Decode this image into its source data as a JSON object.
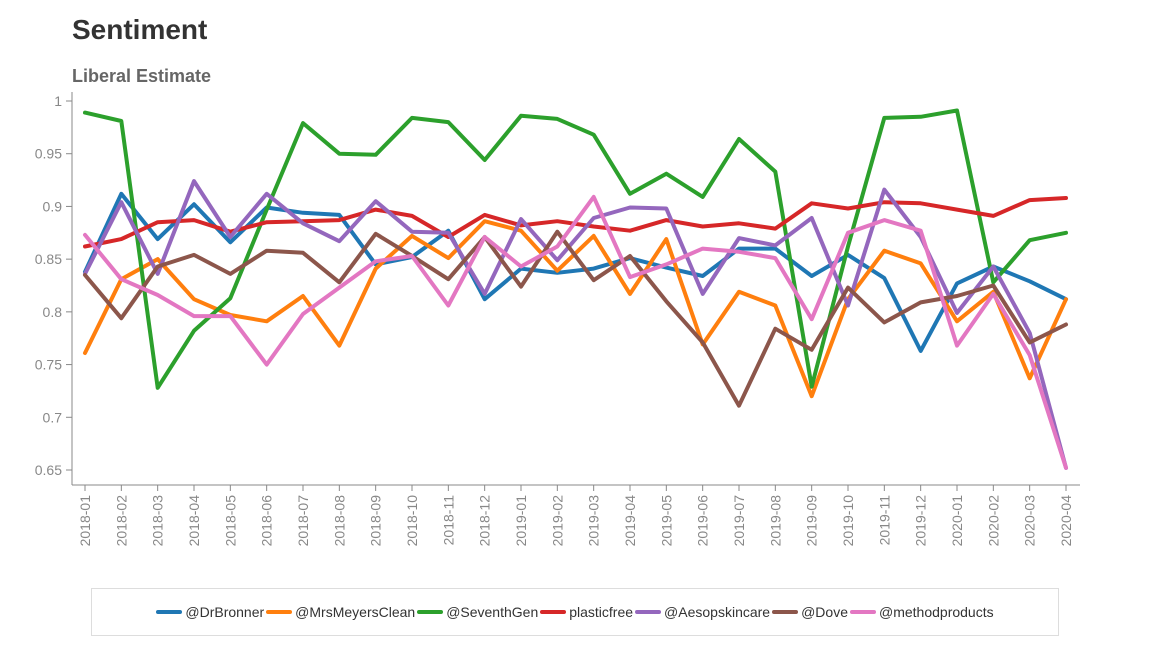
{
  "title": "Sentiment",
  "subtitle": "Liberal Estimate",
  "chart_data": {
    "type": "line",
    "x": [
      "2018-01",
      "2018-02",
      "2018-03",
      "2018-04",
      "2018-05",
      "2018-06",
      "2018-07",
      "2018-08",
      "2018-09",
      "2018-10",
      "2018-11",
      "2018-12",
      "2019-01",
      "2019-02",
      "2019-03",
      "2019-04",
      "2019-05",
      "2019-06",
      "2019-07",
      "2019-08",
      "2019-09",
      "2019-10",
      "2019-11",
      "2019-12",
      "2020-01",
      "2020-02",
      "2020-03",
      "2020-04"
    ],
    "ylim": [
      0.64,
      1.0
    ],
    "yticks": [
      0.65,
      0.7,
      0.75,
      0.8,
      0.85,
      0.9,
      0.95,
      1
    ],
    "ytick_labels": [
      "0.65",
      "0.7",
      "0.75",
      "0.8",
      "0.85",
      "0.9",
      "0.95",
      "1"
    ],
    "legend_position": "bottom",
    "series": [
      {
        "name": "@DrBronner",
        "color": "#1f77b4",
        "values": [
          0.838,
          0.912,
          0.869,
          0.902,
          0.866,
          0.899,
          0.894,
          0.892,
          0.845,
          0.852,
          0.877,
          0.812,
          0.841,
          0.837,
          0.841,
          0.851,
          0.842,
          0.834,
          0.86,
          0.86,
          0.834,
          0.854,
          0.832,
          0.763,
          0.827,
          0.843,
          0.829,
          0.812
        ]
      },
      {
        "name": "@MrsMeyersClean",
        "color": "#ff7f0e",
        "values": [
          0.761,
          0.831,
          0.85,
          0.812,
          0.797,
          0.791,
          0.815,
          0.768,
          0.841,
          0.872,
          0.851,
          0.886,
          0.877,
          0.839,
          0.872,
          0.817,
          0.869,
          0.769,
          0.819,
          0.806,
          0.72,
          0.812,
          0.858,
          0.846,
          0.791,
          0.819,
          0.737,
          0.812
        ]
      },
      {
        "name": "@SeventhGen",
        "color": "#2ca02c",
        "values": [
          0.989,
          0.981,
          0.728,
          0.782,
          0.813,
          0.897,
          0.979,
          0.95,
          0.949,
          0.984,
          0.98,
          0.944,
          0.986,
          0.983,
          0.968,
          0.912,
          0.931,
          0.909,
          0.964,
          0.933,
          0.729,
          0.862,
          0.984,
          0.985,
          0.991,
          0.828,
          0.868,
          0.875
        ]
      },
      {
        "name": "plasticfree",
        "color": "#d62728",
        "values": [
          0.862,
          0.869,
          0.885,
          0.887,
          0.876,
          0.885,
          0.886,
          0.887,
          0.897,
          0.891,
          0.871,
          0.892,
          0.882,
          0.886,
          0.881,
          0.877,
          0.887,
          0.881,
          0.884,
          0.879,
          0.903,
          0.898,
          0.904,
          0.903,
          0.897,
          0.891,
          0.906,
          0.908
        ]
      },
      {
        "name": "@Aesopskincare",
        "color": "#9467bd",
        "values": [
          0.836,
          0.904,
          0.836,
          0.924,
          0.871,
          0.912,
          0.884,
          0.867,
          0.905,
          0.876,
          0.875,
          0.817,
          0.888,
          0.849,
          0.889,
          0.899,
          0.898,
          0.817,
          0.87,
          0.863,
          0.889,
          0.806,
          0.916,
          0.871,
          0.799,
          0.843,
          0.78,
          0.652
        ]
      },
      {
        "name": "@Dove",
        "color": "#8c564b",
        "values": [
          0.835,
          0.794,
          0.843,
          0.854,
          0.836,
          0.858,
          0.856,
          0.828,
          0.874,
          0.853,
          0.831,
          0.871,
          0.824,
          0.876,
          0.83,
          0.853,
          0.81,
          0.771,
          0.711,
          0.784,
          0.764,
          0.823,
          0.79,
          0.809,
          0.815,
          0.825,
          0.771,
          0.788
        ]
      },
      {
        "name": "@methodproducts",
        "color": "#e377c2",
        "values": [
          0.873,
          0.831,
          0.816,
          0.796,
          0.796,
          0.75,
          0.798,
          0.823,
          0.848,
          0.853,
          0.806,
          0.871,
          0.843,
          0.862,
          0.909,
          0.833,
          0.845,
          0.86,
          0.857,
          0.851,
          0.793,
          0.875,
          0.887,
          0.877,
          0.768,
          0.817,
          0.759,
          0.652
        ]
      }
    ]
  }
}
